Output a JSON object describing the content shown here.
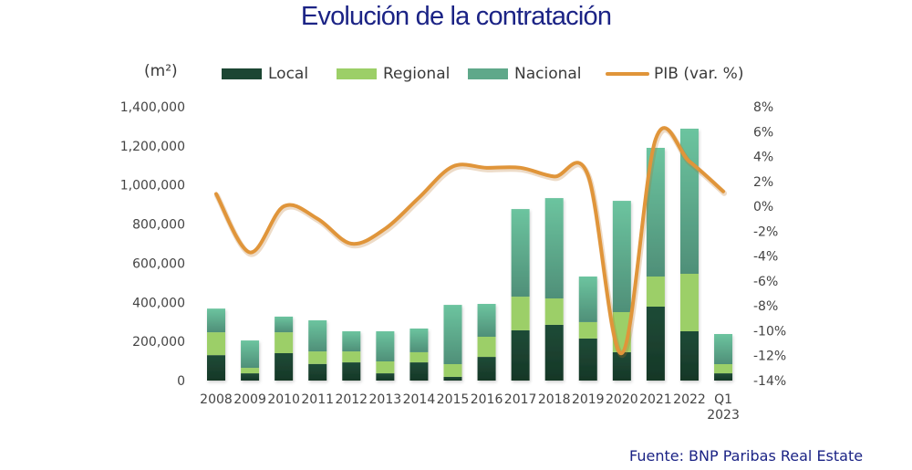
{
  "chart_data": {
    "type": "bar",
    "subtype": "stacked-bar-with-line",
    "title": "Evolución de la contratación",
    "ylabel": "(m²)",
    "y2label": "",
    "categories": [
      "2008",
      "2009",
      "2010",
      "2011",
      "2012",
      "2013",
      "2014",
      "2015",
      "2016",
      "2017",
      "2018",
      "2019",
      "2020",
      "2021",
      "2022",
      "Q1\n2023"
    ],
    "category_labels": [
      [
        "2008"
      ],
      [
        "2009"
      ],
      [
        "2010"
      ],
      [
        "2011"
      ],
      [
        "2012"
      ],
      [
        "2013"
      ],
      [
        "2014"
      ],
      [
        "2015"
      ],
      [
        "2016"
      ],
      [
        "2017"
      ],
      [
        "2018"
      ],
      [
        "2019"
      ],
      [
        "2020"
      ],
      [
        "2021"
      ],
      [
        "2022"
      ],
      [
        "Q1",
        "2023"
      ]
    ],
    "series": [
      {
        "name": "Local",
        "type": "bar",
        "axis": "left",
        "color": "#1c4633",
        "values": [
          130000,
          37000,
          140000,
          85000,
          93000,
          37000,
          93000,
          19000,
          121000,
          257000,
          285000,
          215000,
          145000,
          378000,
          252000,
          37000
        ]
      },
      {
        "name": "Regional",
        "type": "bar",
        "axis": "left",
        "color": "#9ccf67",
        "values": [
          117000,
          28000,
          107000,
          64000,
          56000,
          61000,
          52000,
          65000,
          103000,
          172000,
          135000,
          84000,
          205000,
          154000,
          294000,
          47000
        ]
      },
      {
        "name": "Nacional",
        "type": "bar",
        "axis": "left",
        "color": "#5fa88a",
        "values": [
          121000,
          140000,
          80000,
          159000,
          103000,
          154000,
          121000,
          303000,
          168000,
          448000,
          513000,
          233000,
          569000,
          658000,
          742000,
          154000
        ]
      },
      {
        "name": "PIB (var. %)",
        "type": "line",
        "axis": "right",
        "color": "#e0953a",
        "values": [
          1.0,
          -3.7,
          0.0,
          -1.0,
          -3.0,
          -1.8,
          0.7,
          3.2,
          3.1,
          3.1,
          2.4,
          2.5,
          -11.8,
          5.4,
          3.6,
          1.2
        ]
      }
    ],
    "yticks": [
      "0",
      "200,000",
      "400,000",
      "600,000",
      "800,000",
      "1,000,000",
      "1,200,000",
      "1,400,000"
    ],
    "ylim": [
      0,
      1400000
    ],
    "y2ticks": [
      "-14%",
      "-12%",
      "-10%",
      "-8%",
      "-6%",
      "-4%",
      "-2%",
      "0%",
      "2%",
      "4%",
      "6%",
      "8%"
    ],
    "y2lim": [
      -14,
      8
    ],
    "grid": false,
    "legend_position": "top",
    "source": "Fuente:  BNP Paribas Real Estate"
  }
}
